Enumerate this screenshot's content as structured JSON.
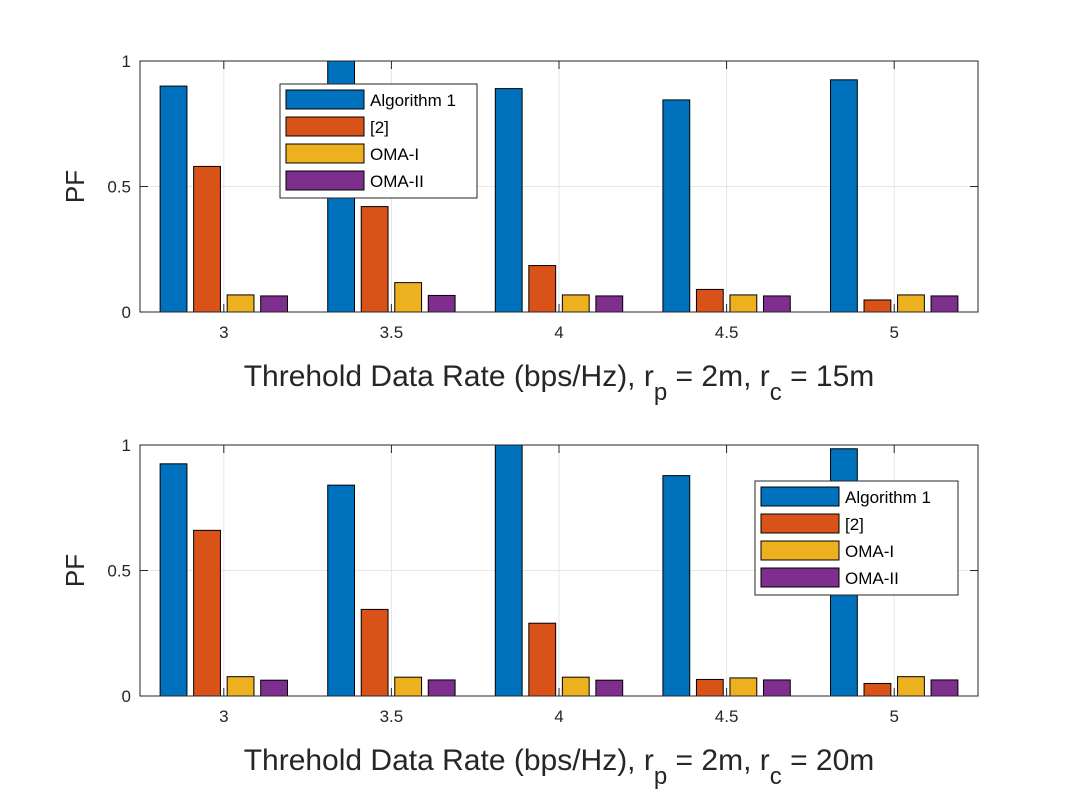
{
  "chart_data": [
    {
      "type": "bar",
      "categories": [
        "3",
        "3.5",
        "4",
        "4.5",
        "5"
      ],
      "series": [
        {
          "name": "Algorithm 1",
          "values": [
            0.9,
            1.0,
            0.89,
            0.845,
            0.925
          ]
        },
        {
          "name": "[2]",
          "values": [
            0.58,
            0.42,
            0.185,
            0.09,
            0.048
          ]
        },
        {
          "name": "OMA-I",
          "values": [
            0.068,
            0.117,
            0.068,
            0.068,
            0.068
          ]
        },
        {
          "name": "OMA-II",
          "values": [
            0.064,
            0.066,
            0.064,
            0.064,
            0.064
          ]
        }
      ],
      "ylabel": "PF",
      "xlabel": {
        "text": "Threhold Data Rate (bps/Hz), r",
        "sub1": "p",
        "mid": " = 2m, r",
        "sub2": "c",
        "end": " = 15m"
      },
      "ylim": [
        0,
        1
      ],
      "yticks": [
        "0",
        "0.5",
        "1"
      ],
      "grid": true,
      "legend_position": "top-left"
    },
    {
      "type": "bar",
      "categories": [
        "3",
        "3.5",
        "4",
        "4.5",
        "5"
      ],
      "series": [
        {
          "name": "Algorithm 1",
          "values": [
            0.925,
            0.84,
            1.0,
            0.878,
            0.985
          ]
        },
        {
          "name": "[2]",
          "values": [
            0.66,
            0.345,
            0.29,
            0.066,
            0.05
          ]
        },
        {
          "name": "OMA-I",
          "values": [
            0.077,
            0.075,
            0.075,
            0.072,
            0.077
          ]
        },
        {
          "name": "OMA-II",
          "values": [
            0.063,
            0.064,
            0.063,
            0.064,
            0.064
          ]
        }
      ],
      "ylabel": "PF",
      "xlabel": {
        "text": "Threhold Data Rate (bps/Hz), r",
        "sub1": "p",
        "mid": " = 2m, r",
        "sub2": "c",
        "end": " = 20m"
      },
      "ylim": [
        0,
        1
      ],
      "yticks": [
        "0",
        "0.5",
        "1"
      ],
      "grid": true,
      "legend_position": "top-right"
    }
  ],
  "colors": {
    "series": [
      "#0072BD",
      "#D95319",
      "#EDB120",
      "#7E2F8E"
    ],
    "axis": "#262626",
    "grid": "#e6e6e6"
  }
}
